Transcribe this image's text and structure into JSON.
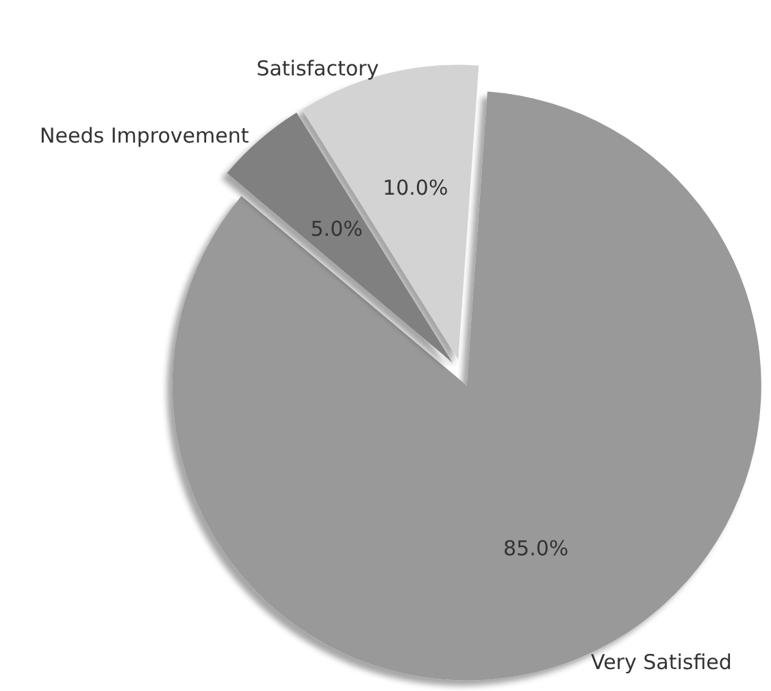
{
  "chart_data": {
    "type": "pie",
    "categories": [
      "Very Satisfied",
      "Satisfactory",
      "Needs Improvement"
    ],
    "values": [
      85,
      10,
      5
    ],
    "colors": [
      "#999999",
      "#d3d3d3",
      "#808080"
    ],
    "value_labels": [
      "85.0%",
      "10.0%",
      "5.0%"
    ],
    "legend": false
  }
}
